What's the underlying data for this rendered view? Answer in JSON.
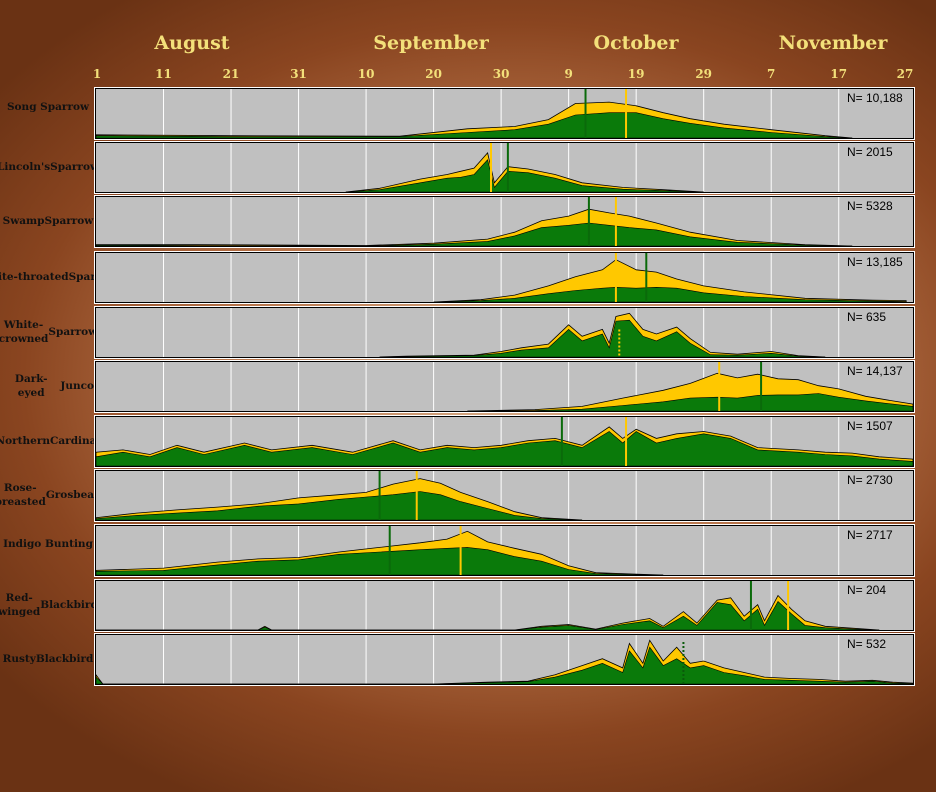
{
  "chart_data": {
    "type": "area",
    "months": [
      {
        "label": "August",
        "day": "1",
        "pos": 0
      },
      {
        "label": "September",
        "day": "1",
        "pos": 31
      },
      {
        "label": "October",
        "day": "1",
        "pos": 61
      },
      {
        "label": "November",
        "day": "1",
        "pos": 92
      }
    ],
    "month_labels": [
      "August",
      "September",
      "October",
      "November"
    ],
    "tick_labels": [
      "1",
      "11",
      "21",
      "31",
      "10",
      "20",
      "30",
      "9",
      "19",
      "29",
      "7",
      "17",
      "27"
    ],
    "tick_positions": [
      0,
      10,
      20,
      30,
      40,
      50,
      60,
      70,
      80,
      90,
      100,
      110,
      120
    ],
    "x_range": [
      0,
      121
    ],
    "grid": true,
    "colors": {
      "green": "#0a7a0a",
      "yellow": "#ffc800",
      "panel": "#c0c0c0",
      "grid": "#ffffff"
    },
    "species": [
      {
        "name": [
          "Song Sparrow"
        ],
        "n": "N= 10,188",
        "peaks": [
          [
            0,
            0.07,
            0.05
          ],
          [
            20,
            0.05,
            0.03
          ],
          [
            45,
            0.04,
            0.03
          ],
          [
            55,
            0.2,
            0.12
          ],
          [
            62,
            0.25,
            0.18
          ],
          [
            67,
            0.4,
            0.3
          ],
          [
            71,
            0.75,
            0.5
          ],
          [
            76,
            0.78,
            0.55
          ],
          [
            80,
            0.7,
            0.55
          ],
          [
            84,
            0.55,
            0.42
          ],
          [
            88,
            0.42,
            0.32
          ],
          [
            93,
            0.3,
            0.22
          ],
          [
            100,
            0.18,
            0.12
          ],
          [
            108,
            0.05,
            0.03
          ],
          [
            112,
            0,
            0
          ]
        ],
        "green_line": 72.5,
        "yellow_line": 78.5,
        "yellow_dotted": false
      },
      {
        "name": [
          "Lincoln's",
          "Sparrow"
        ],
        "n": "N= 2015",
        "peaks": [
          [
            37,
            0,
            0
          ],
          [
            42,
            0.08,
            0.05
          ],
          [
            48,
            0.28,
            0.2
          ],
          [
            52,
            0.38,
            0.3
          ],
          [
            54,
            0.45,
            0.32
          ],
          [
            56,
            0.52,
            0.38
          ],
          [
            58,
            0.85,
            0.7
          ],
          [
            59,
            0.2,
            0.1
          ],
          [
            61,
            0.55,
            0.45
          ],
          [
            64,
            0.5,
            0.42
          ],
          [
            68,
            0.38,
            0.3
          ],
          [
            72,
            0.2,
            0.14
          ],
          [
            78,
            0.1,
            0.06
          ],
          [
            84,
            0.05,
            0.03
          ],
          [
            90,
            0,
            0
          ]
        ],
        "green_line": 61,
        "yellow_line": 58.5,
        "yellow_dotted": false
      },
      {
        "name": [
          "Swamp",
          "Sparrow"
        ],
        "n": "N= 5328",
        "peaks": [
          [
            0,
            0.03,
            0.02
          ],
          [
            15,
            0.03,
            0.01
          ],
          [
            40,
            0.01,
            0
          ],
          [
            50,
            0.06,
            0.04
          ],
          [
            58,
            0.15,
            0.1
          ],
          [
            62,
            0.3,
            0.22
          ],
          [
            66,
            0.55,
            0.4
          ],
          [
            70,
            0.65,
            0.45
          ],
          [
            73,
            0.8,
            0.5
          ],
          [
            76,
            0.72,
            0.45
          ],
          [
            79,
            0.65,
            0.4
          ],
          [
            83,
            0.5,
            0.35
          ],
          [
            88,
            0.3,
            0.2
          ],
          [
            95,
            0.12,
            0.08
          ],
          [
            105,
            0.03,
            0.02
          ],
          [
            112,
            0,
            0
          ]
        ],
        "green_line": 73,
        "yellow_line": 77,
        "yellow_dotted": false
      },
      {
        "name": [
          "White-",
          "throated",
          "Sparrow"
        ],
        "n": "N= 13,185",
        "peaks": [
          [
            50,
            0,
            0
          ],
          [
            57,
            0.05,
            0.03
          ],
          [
            62,
            0.15,
            0.08
          ],
          [
            67,
            0.35,
            0.18
          ],
          [
            71,
            0.55,
            0.25
          ],
          [
            75,
            0.7,
            0.3
          ],
          [
            77,
            0.92,
            0.32
          ],
          [
            80,
            0.7,
            0.3
          ],
          [
            83,
            0.65,
            0.32
          ],
          [
            86,
            0.5,
            0.3
          ],
          [
            90,
            0.35,
            0.2
          ],
          [
            96,
            0.22,
            0.12
          ],
          [
            105,
            0.08,
            0.05
          ],
          [
            115,
            0.04,
            0.02
          ],
          [
            120,
            0.03,
            0.01
          ]
        ],
        "green_line": 81.5,
        "yellow_line": 77,
        "yellow_dotted": false
      },
      {
        "name": [
          "White-crowned",
          "Sparrow"
        ],
        "n": "N= 635",
        "peaks": [
          [
            42,
            0,
            0
          ],
          [
            46,
            0.02,
            0.01
          ],
          [
            56,
            0.04,
            0.03
          ],
          [
            60,
            0.12,
            0.08
          ],
          [
            63,
            0.2,
            0.15
          ],
          [
            67,
            0.28,
            0.2
          ],
          [
            70,
            0.7,
            0.6
          ],
          [
            72,
            0.45,
            0.35
          ],
          [
            75,
            0.6,
            0.5
          ],
          [
            76,
            0.3,
            0.2
          ],
          [
            77,
            0.88,
            0.78
          ],
          [
            79,
            0.95,
            0.8
          ],
          [
            81,
            0.6,
            0.45
          ],
          [
            83,
            0.5,
            0.35
          ],
          [
            86,
            0.65,
            0.55
          ],
          [
            88,
            0.4,
            0.3
          ],
          [
            91,
            0.1,
            0.05
          ],
          [
            95,
            0.06,
            0.04
          ],
          [
            100,
            0.12,
            0.08
          ],
          [
            104,
            0.03,
            0.02
          ],
          [
            108,
            0,
            0
          ]
        ],
        "green_line": 77.5,
        "yellow_line": 77.5,
        "yellow_dotted": true
      },
      {
        "name": [
          "Dark-eyed",
          "Junco"
        ],
        "n": "N= 14,137",
        "peaks": [
          [
            55,
            0,
            0
          ],
          [
            65,
            0.03,
            0.01
          ],
          [
            72,
            0.1,
            0.04
          ],
          [
            78,
            0.28,
            0.12
          ],
          [
            84,
            0.45,
            0.2
          ],
          [
            88,
            0.6,
            0.28
          ],
          [
            92,
            0.82,
            0.3
          ],
          [
            95,
            0.72,
            0.28
          ],
          [
            98,
            0.8,
            0.34
          ],
          [
            101,
            0.7,
            0.35
          ],
          [
            104,
            0.68,
            0.35
          ],
          [
            107,
            0.55,
            0.38
          ],
          [
            110,
            0.48,
            0.3
          ],
          [
            114,
            0.32,
            0.22
          ],
          [
            118,
            0.22,
            0.15
          ],
          [
            121,
            0.15,
            0.1
          ]
        ],
        "green_line": 98.5,
        "yellow_line": 92.3,
        "yellow_dotted": false
      },
      {
        "name": [
          "Northern",
          "Cardinal"
        ],
        "n": "N= 1507",
        "peaks": [
          [
            0,
            0.3,
            0.2
          ],
          [
            4,
            0.35,
            0.3
          ],
          [
            8,
            0.25,
            0.2
          ],
          [
            12,
            0.45,
            0.4
          ],
          [
            16,
            0.3,
            0.25
          ],
          [
            22,
            0.5,
            0.45
          ],
          [
            26,
            0.35,
            0.3
          ],
          [
            32,
            0.45,
            0.4
          ],
          [
            38,
            0.3,
            0.25
          ],
          [
            44,
            0.55,
            0.5
          ],
          [
            48,
            0.35,
            0.3
          ],
          [
            52,
            0.45,
            0.4
          ],
          [
            56,
            0.4,
            0.35
          ],
          [
            60,
            0.45,
            0.4
          ],
          [
            64,
            0.55,
            0.5
          ],
          [
            68,
            0.6,
            0.55
          ],
          [
            72,
            0.45,
            0.4
          ],
          [
            76,
            0.85,
            0.75
          ],
          [
            78,
            0.6,
            0.5
          ],
          [
            80,
            0.8,
            0.75
          ],
          [
            83,
            0.6,
            0.5
          ],
          [
            86,
            0.7,
            0.6
          ],
          [
            90,
            0.75,
            0.7
          ],
          [
            94,
            0.65,
            0.6
          ],
          [
            98,
            0.4,
            0.35
          ],
          [
            104,
            0.35,
            0.3
          ],
          [
            108,
            0.3,
            0.25
          ],
          [
            112,
            0.28,
            0.22
          ],
          [
            116,
            0.2,
            0.15
          ],
          [
            121,
            0.15,
            0.1
          ]
        ],
        "green_line": 69,
        "yellow_line": 78.5,
        "yellow_dotted": false
      },
      {
        "name": [
          "Rose-breasted",
          "Grosbeak"
        ],
        "n": "N= 2730",
        "peaks": [
          [
            0,
            0.05,
            0.03
          ],
          [
            6,
            0.15,
            0.1
          ],
          [
            12,
            0.22,
            0.15
          ],
          [
            18,
            0.28,
            0.2
          ],
          [
            24,
            0.35,
            0.3
          ],
          [
            30,
            0.48,
            0.35
          ],
          [
            36,
            0.55,
            0.45
          ],
          [
            40,
            0.6,
            0.5
          ],
          [
            44,
            0.78,
            0.55
          ],
          [
            48,
            0.9,
            0.62
          ],
          [
            51,
            0.8,
            0.55
          ],
          [
            54,
            0.6,
            0.4
          ],
          [
            58,
            0.4,
            0.25
          ],
          [
            62,
            0.18,
            0.1
          ],
          [
            66,
            0.05,
            0.03
          ],
          [
            72,
            0,
            0
          ]
        ],
        "green_line": 42,
        "yellow_line": 47.5,
        "yellow_dotted": false
      },
      {
        "name": [
          "Indigo Bunting"
        ],
        "n": "N= 2717",
        "peaks": [
          [
            0,
            0.1,
            0.08
          ],
          [
            10,
            0.15,
            0.1
          ],
          [
            18,
            0.28,
            0.22
          ],
          [
            24,
            0.35,
            0.3
          ],
          [
            30,
            0.38,
            0.33
          ],
          [
            36,
            0.5,
            0.45
          ],
          [
            42,
            0.6,
            0.5
          ],
          [
            48,
            0.7,
            0.55
          ],
          [
            52,
            0.78,
            0.58
          ],
          [
            55,
            0.95,
            0.6
          ],
          [
            58,
            0.72,
            0.55
          ],
          [
            62,
            0.58,
            0.4
          ],
          [
            66,
            0.45,
            0.3
          ],
          [
            70,
            0.2,
            0.12
          ],
          [
            74,
            0.05,
            0.03
          ],
          [
            80,
            0.02,
            0.01
          ],
          [
            84,
            0,
            0
          ]
        ],
        "green_line": 43.5,
        "yellow_line": 54,
        "yellow_dotted": false
      },
      {
        "name": [
          "Red-winged",
          "Blackbird"
        ],
        "n": "N= 204",
        "peaks": [
          [
            0,
            0,
            0
          ],
          [
            24,
            0,
            0
          ],
          [
            25,
            0.08,
            0.06
          ],
          [
            26,
            0,
            0
          ],
          [
            62,
            0,
            0
          ],
          [
            66,
            0.08,
            0.06
          ],
          [
            70,
            0.12,
            0.1
          ],
          [
            74,
            0.02,
            0.01
          ],
          [
            78,
            0.15,
            0.12
          ],
          [
            82,
            0.25,
            0.2
          ],
          [
            84,
            0.08,
            0.05
          ],
          [
            87,
            0.4,
            0.3
          ],
          [
            89,
            0.15,
            0.1
          ],
          [
            92,
            0.65,
            0.6
          ],
          [
            94,
            0.7,
            0.55
          ],
          [
            96,
            0.3,
            0.2
          ],
          [
            98,
            0.55,
            0.45
          ],
          [
            99,
            0.2,
            0.1
          ],
          [
            101,
            0.75,
            0.62
          ],
          [
            103,
            0.45,
            0.35
          ],
          [
            105,
            0.2,
            0.1
          ],
          [
            108,
            0.08,
            0.05
          ],
          [
            112,
            0.04,
            0.02
          ],
          [
            116,
            0,
            0
          ]
        ],
        "green_line": 97,
        "yellow_line": 102.5,
        "yellow_dotted": false
      },
      {
        "name": [
          "Rusty",
          "Blackbird"
        ],
        "n": "N= 532",
        "peaks": [
          [
            0,
            0.2,
            0.15
          ],
          [
            1,
            0,
            0
          ],
          [
            50,
            0,
            0
          ],
          [
            58,
            0.04,
            0.03
          ],
          [
            64,
            0.06,
            0.05
          ],
          [
            68,
            0.2,
            0.15
          ],
          [
            72,
            0.4,
            0.3
          ],
          [
            75,
            0.55,
            0.45
          ],
          [
            78,
            0.35,
            0.25
          ],
          [
            79,
            0.88,
            0.72
          ],
          [
            81,
            0.45,
            0.35
          ],
          [
            82,
            0.95,
            0.8
          ],
          [
            84,
            0.5,
            0.4
          ],
          [
            86,
            0.8,
            0.55
          ],
          [
            88,
            0.45,
            0.35
          ],
          [
            90,
            0.5,
            0.4
          ],
          [
            93,
            0.35,
            0.25
          ],
          [
            96,
            0.25,
            0.18
          ],
          [
            99,
            0.15,
            0.1
          ],
          [
            103,
            0.12,
            0.08
          ],
          [
            107,
            0.1,
            0.06
          ],
          [
            111,
            0.06,
            0.04
          ],
          [
            115,
            0.08,
            0.06
          ],
          [
            118,
            0.04,
            0.02
          ],
          [
            121,
            0.02,
            0.01
          ]
        ],
        "green_line": null,
        "yellow_line": null,
        "green_dotted_line": 87,
        "yellow_dotted": false
      }
    ]
  }
}
